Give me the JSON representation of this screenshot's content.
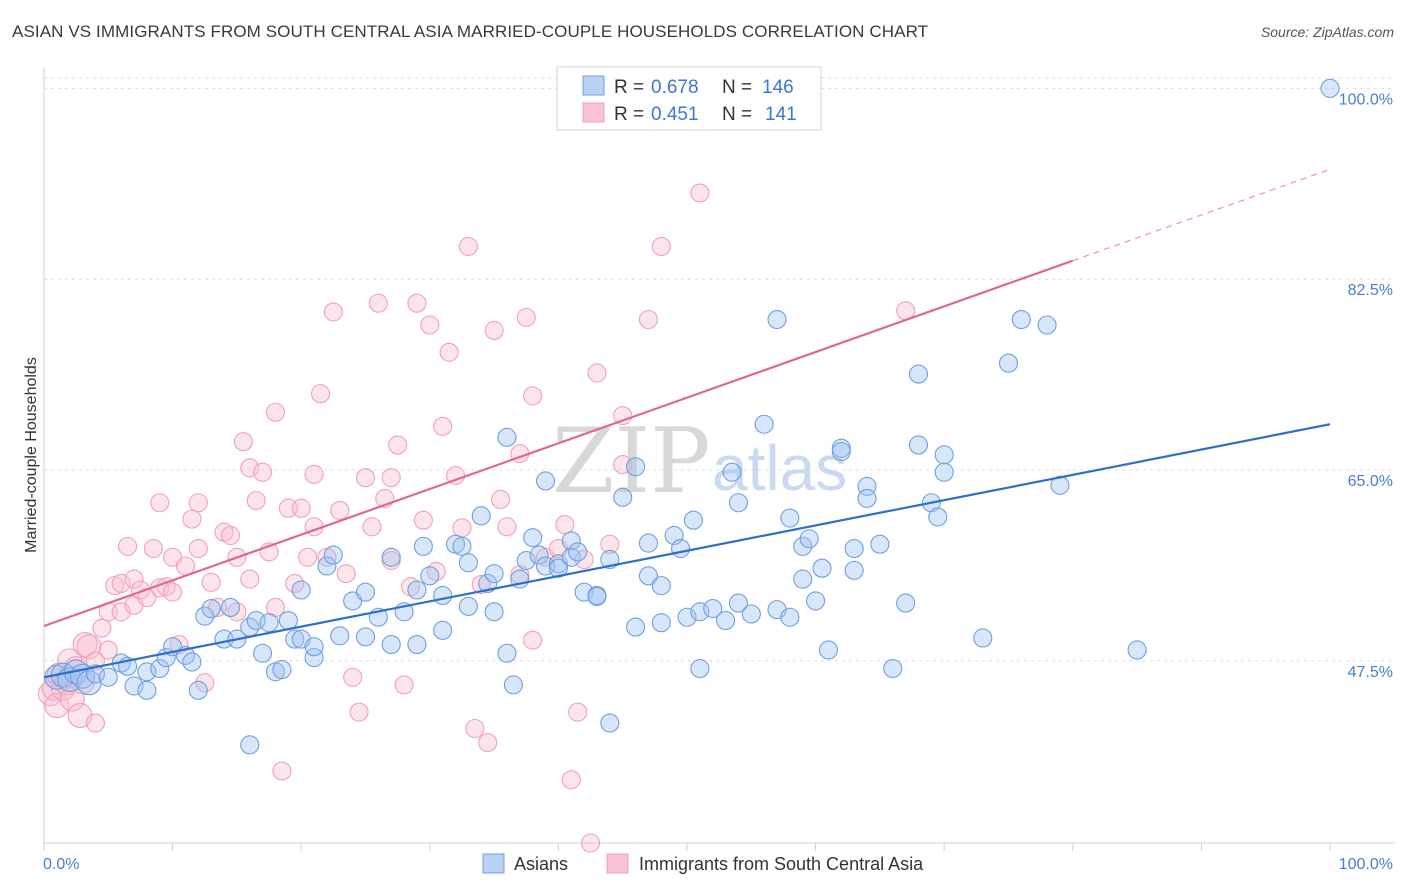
{
  "title": "ASIAN VS IMMIGRANTS FROM SOUTH CENTRAL ASIA MARRIED-COUPLE HOUSEHOLDS CORRELATION CHART",
  "source": "Source: ZipAtlas.com",
  "watermark": {
    "zip": "ZIP",
    "atlas": "atlas"
  },
  "colors": {
    "asians": "#6fa0e0",
    "immigrants": "#f2a0b8",
    "asians_line": "#2f6fcc",
    "immigrants_line": "#e06890",
    "tick": "#4a7fcb"
  },
  "legend": {
    "r_label": "R =",
    "n_label": "N =",
    "rows": [
      {
        "r": "0.678",
        "n": "146"
      },
      {
        "r": "0.451",
        "n": "141"
      }
    ]
  },
  "bottom_legend": [
    "Asians",
    "Immigrants from South Central Asia"
  ],
  "chart_data": {
    "type": "scatter",
    "xlabel": "",
    "ylabel": "Married-couple Households",
    "xlim": [
      0,
      100
    ],
    "ylim": [
      30.8,
      101.5
    ],
    "x_tick_labels": [
      "0.0%",
      "100.0%"
    ],
    "y_ticks": [
      47.5,
      65.0,
      82.5,
      100.0
    ],
    "y_tick_labels": [
      "47.5%",
      "65.0%",
      "82.5%",
      "100.0%"
    ],
    "grid": true,
    "legend_placement": "top-center",
    "series": [
      {
        "name": "Asians",
        "regression": {
          "x": [
            0,
            100
          ],
          "y": [
            46.0,
            69.2
          ]
        },
        "points": [
          [
            1,
            46
          ],
          [
            1.5,
            46.2
          ],
          [
            2,
            45.8
          ],
          [
            2.5,
            46.5
          ],
          [
            3,
            46.1
          ],
          [
            3.5,
            45.5
          ],
          [
            4,
            46.3
          ],
          [
            5,
            46
          ],
          [
            6,
            47.3
          ],
          [
            6.5,
            47
          ],
          [
            7,
            45.2
          ],
          [
            8,
            46.5
          ],
          [
            8,
            44.8
          ],
          [
            9,
            46.8
          ],
          [
            9.5,
            47.8
          ],
          [
            10,
            48.8
          ],
          [
            11,
            48
          ],
          [
            11.5,
            47.4
          ],
          [
            12,
            44.8
          ],
          [
            12.5,
            51.6
          ],
          [
            13,
            52.3
          ],
          [
            14,
            49.5
          ],
          [
            14.5,
            52.4
          ],
          [
            15,
            49.5
          ],
          [
            16,
            39.8
          ],
          [
            16,
            50.6
          ],
          [
            16.5,
            51.2
          ],
          [
            17,
            48.2
          ],
          [
            17.5,
            51
          ],
          [
            18,
            46.5
          ],
          [
            18.5,
            46.7
          ],
          [
            19,
            51.2
          ],
          [
            19.5,
            49.5
          ],
          [
            20,
            54
          ],
          [
            20,
            49.5
          ],
          [
            21,
            47.8
          ],
          [
            21,
            48.8
          ],
          [
            22,
            56.2
          ],
          [
            22.5,
            57.2
          ],
          [
            23,
            49.8
          ],
          [
            24,
            53
          ],
          [
            25,
            53.8
          ],
          [
            25,
            49.7
          ],
          [
            26,
            51.5
          ],
          [
            27,
            57
          ],
          [
            27,
            49
          ],
          [
            28,
            52
          ],
          [
            29,
            54
          ],
          [
            29,
            49
          ],
          [
            29.5,
            58
          ],
          [
            30,
            55.3
          ],
          [
            31,
            53.5
          ],
          [
            31,
            50.3
          ],
          [
            32,
            58.2
          ],
          [
            32.5,
            58
          ],
          [
            33,
            52.5
          ],
          [
            33,
            56.5
          ],
          [
            34,
            60.8
          ],
          [
            34.5,
            54.6
          ],
          [
            35,
            52
          ],
          [
            35,
            55.5
          ],
          [
            36,
            68
          ],
          [
            36,
            48.2
          ],
          [
            36.5,
            45.3
          ],
          [
            37,
            55
          ],
          [
            37.5,
            56.7
          ],
          [
            38,
            58.8
          ],
          [
            38.5,
            57.2
          ],
          [
            39,
            64
          ],
          [
            39,
            56.2
          ],
          [
            40,
            56.4
          ],
          [
            40,
            56
          ],
          [
            41,
            58.5
          ],
          [
            41,
            57
          ],
          [
            41.5,
            57.5
          ],
          [
            42,
            53.8
          ],
          [
            43,
            53.5
          ],
          [
            43,
            53.4
          ],
          [
            44,
            56.8
          ],
          [
            44,
            41.8
          ],
          [
            45,
            62.5
          ],
          [
            46,
            65.3
          ],
          [
            46,
            50.6
          ],
          [
            47,
            58.3
          ],
          [
            47,
            55.3
          ],
          [
            48,
            51
          ],
          [
            48,
            54.4
          ],
          [
            49,
            59
          ],
          [
            49.5,
            57.8
          ],
          [
            50,
            51.5
          ],
          [
            50.5,
            60.4
          ],
          [
            51,
            46.8
          ],
          [
            51,
            52
          ],
          [
            52,
            52.3
          ],
          [
            53,
            51.2
          ],
          [
            53.5,
            64.8
          ],
          [
            54,
            62
          ],
          [
            54,
            52.8
          ],
          [
            55,
            51.8
          ],
          [
            56,
            69.2
          ],
          [
            57,
            52.2
          ],
          [
            57,
            78.8
          ],
          [
            58,
            51.5
          ],
          [
            58,
            60.6
          ],
          [
            59,
            55
          ],
          [
            59,
            58
          ],
          [
            59.5,
            58.7
          ],
          [
            60,
            53
          ],
          [
            60.5,
            56
          ],
          [
            61,
            48.5
          ],
          [
            62,
            67
          ],
          [
            62,
            66.7
          ],
          [
            63,
            57.8
          ],
          [
            63,
            55.8
          ],
          [
            64,
            63.5
          ],
          [
            64,
            62.4
          ],
          [
            65,
            58.2
          ],
          [
            66,
            46.8
          ],
          [
            67,
            52.8
          ],
          [
            68,
            73.8
          ],
          [
            68,
            67.3
          ],
          [
            69,
            62
          ],
          [
            69.5,
            60.7
          ],
          [
            70,
            64.8
          ],
          [
            70,
            66.4
          ],
          [
            73,
            49.6
          ],
          [
            75,
            74.8
          ],
          [
            76,
            78.8
          ],
          [
            78,
            78.3
          ],
          [
            79,
            63.6
          ],
          [
            85,
            48.5
          ],
          [
            100,
            100
          ]
        ]
      },
      {
        "name": "Immigrants from South Central Asia",
        "regression": {
          "x": [
            0,
            80
          ],
          "y": [
            50.7,
            84.2
          ]
        },
        "points": [
          [
            0.5,
            44.5
          ],
          [
            0.8,
            45
          ],
          [
            1,
            43.4
          ],
          [
            1.2,
            46.2
          ],
          [
            1.5,
            45
          ],
          [
            1.8,
            45.5
          ],
          [
            2,
            47.5
          ],
          [
            2.2,
            44
          ],
          [
            2.5,
            46.8
          ],
          [
            2.8,
            42.5
          ],
          [
            3,
            45.6
          ],
          [
            3.2,
            49
          ],
          [
            3.5,
            48.8
          ],
          [
            4,
            41.8
          ],
          [
            4,
            47.5
          ],
          [
            4.5,
            50.5
          ],
          [
            5,
            48.5
          ],
          [
            5,
            52
          ],
          [
            5.5,
            54.4
          ],
          [
            6,
            52
          ],
          [
            6,
            54.6
          ],
          [
            6.5,
            58
          ],
          [
            7,
            52.6
          ],
          [
            7,
            55
          ],
          [
            7.5,
            54
          ],
          [
            8,
            53.3
          ],
          [
            8.5,
            57.8
          ],
          [
            9,
            62
          ],
          [
            9,
            54.2
          ],
          [
            9.5,
            54.3
          ],
          [
            10,
            53.8
          ],
          [
            10,
            57
          ],
          [
            10.5,
            49
          ],
          [
            11,
            56.2
          ],
          [
            11.5,
            60.5
          ],
          [
            12,
            57.8
          ],
          [
            12,
            62
          ],
          [
            12.5,
            45.5
          ],
          [
            13,
            54.7
          ],
          [
            13.5,
            52.4
          ],
          [
            14,
            59.3
          ],
          [
            14.5,
            59
          ],
          [
            15,
            57
          ],
          [
            15,
            52
          ],
          [
            15.5,
            67.6
          ],
          [
            16,
            65.2
          ],
          [
            16,
            55
          ],
          [
            16.5,
            62.2
          ],
          [
            17,
            64.8
          ],
          [
            17.5,
            57.5
          ],
          [
            18,
            70.3
          ],
          [
            18,
            52.4
          ],
          [
            18.5,
            37.4
          ],
          [
            19,
            61.5
          ],
          [
            19.5,
            54.6
          ],
          [
            20,
            61.5
          ],
          [
            20.5,
            57
          ],
          [
            21,
            64.6
          ],
          [
            21,
            59.8
          ],
          [
            21.5,
            72
          ],
          [
            22,
            57
          ],
          [
            22.5,
            79.5
          ],
          [
            23,
            61.3
          ],
          [
            23.5,
            55.5
          ],
          [
            24,
            46
          ],
          [
            24.5,
            42.8
          ],
          [
            25,
            64.3
          ],
          [
            25.5,
            59.8
          ],
          [
            26,
            80.3
          ],
          [
            26.5,
            62.4
          ],
          [
            27,
            64.3
          ],
          [
            27,
            56.7
          ],
          [
            27.5,
            67.3
          ],
          [
            28,
            45.3
          ],
          [
            28.5,
            54.3
          ],
          [
            29,
            80.3
          ],
          [
            29.5,
            60.4
          ],
          [
            30,
            78.3
          ],
          [
            30.5,
            55.7
          ],
          [
            31,
            69
          ],
          [
            31.5,
            75.8
          ],
          [
            32,
            64.5
          ],
          [
            32.5,
            59.7
          ],
          [
            33,
            85.5
          ],
          [
            33.5,
            41.3
          ],
          [
            34,
            54.5
          ],
          [
            34.5,
            40
          ],
          [
            35,
            77.8
          ],
          [
            35.5,
            62.3
          ],
          [
            36,
            59.8
          ],
          [
            37,
            55.4
          ],
          [
            37,
            66.5
          ],
          [
            37.5,
            79
          ],
          [
            38,
            49.4
          ],
          [
            38,
            71.8
          ],
          [
            39,
            57
          ],
          [
            40,
            57.8
          ],
          [
            40.5,
            60
          ],
          [
            41,
            36.6
          ],
          [
            41.5,
            42.8
          ],
          [
            42,
            56.8
          ],
          [
            42.5,
            30.8
          ],
          [
            43,
            73.9
          ],
          [
            44,
            58.2
          ],
          [
            45,
            65.5
          ],
          [
            45,
            70
          ],
          [
            47,
            78.8
          ],
          [
            48,
            85.5
          ],
          [
            51,
            90.4
          ],
          [
            67,
            79.6
          ]
        ]
      }
    ]
  }
}
